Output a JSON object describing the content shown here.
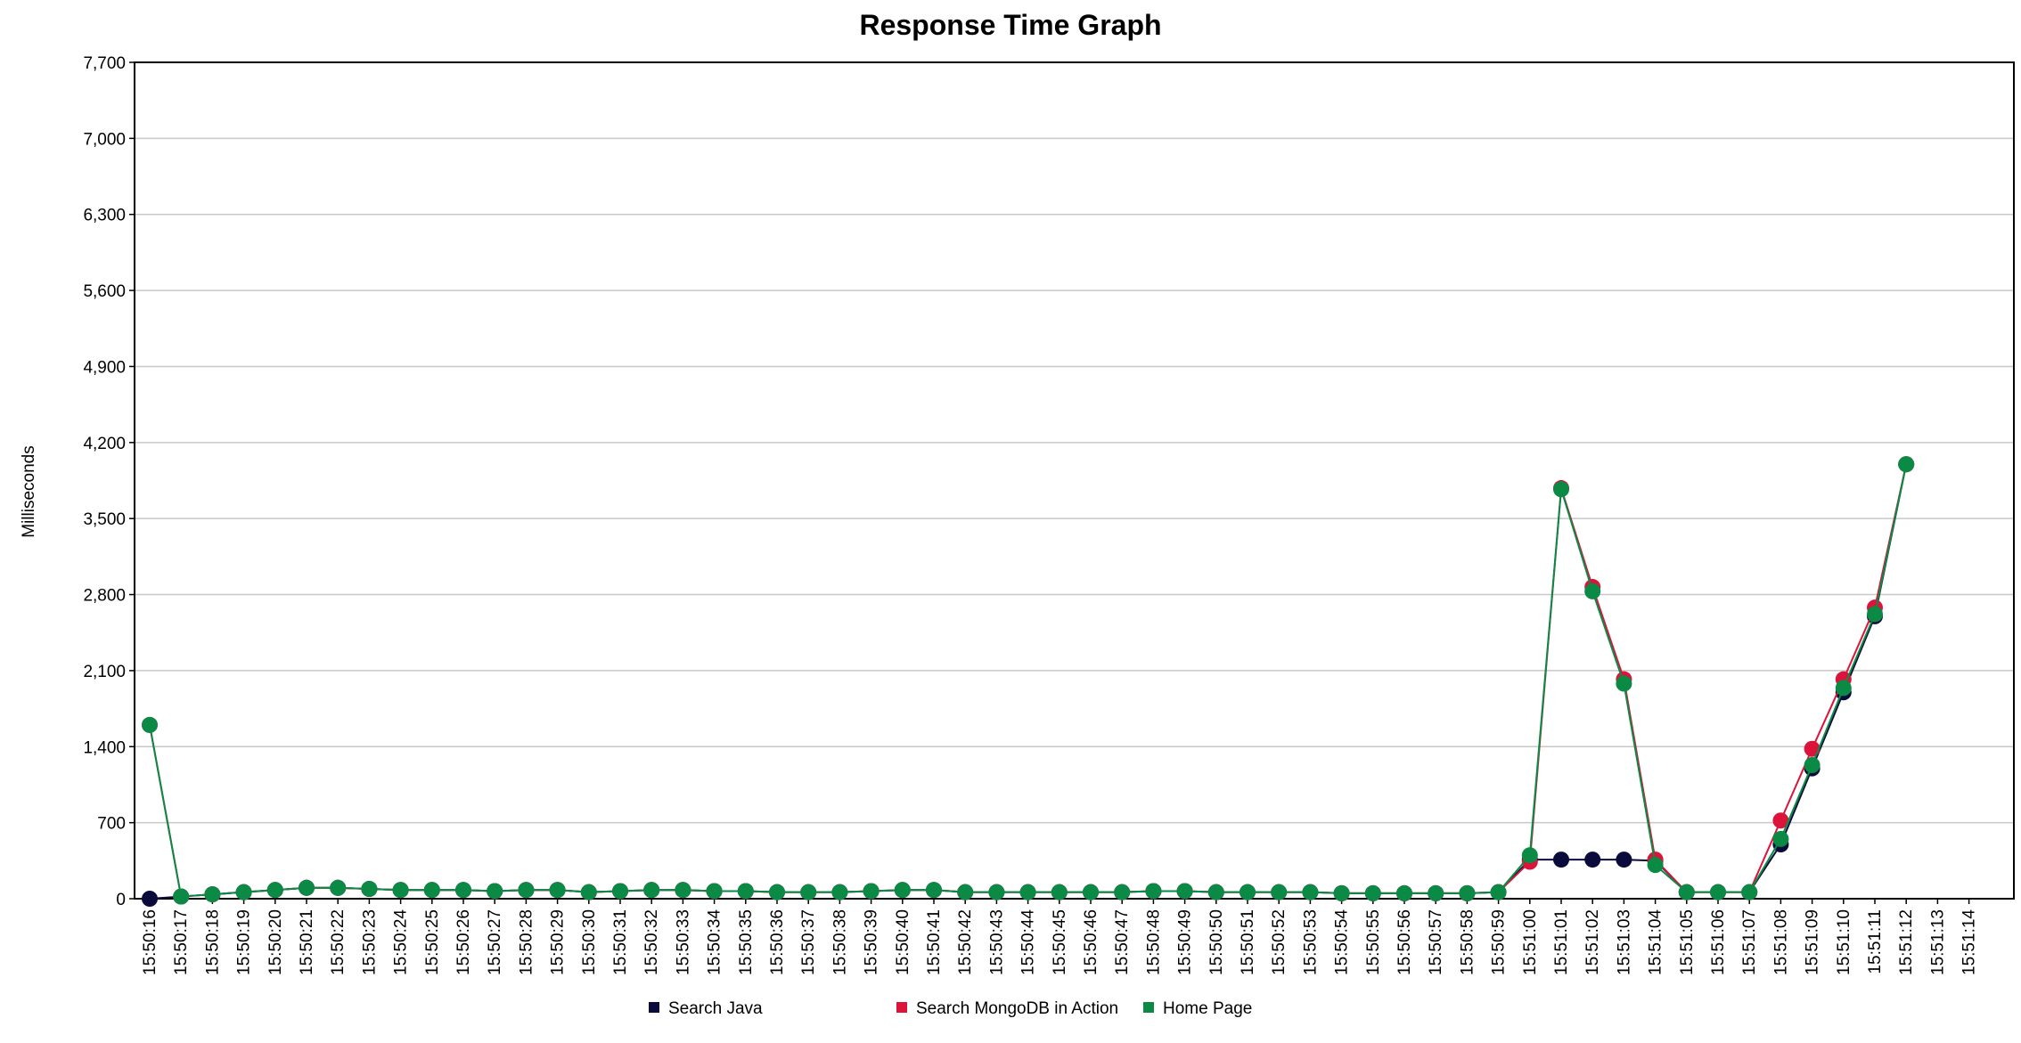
{
  "chart_data": {
    "type": "line",
    "title": "Response Time Graph",
    "xlabel": "",
    "ylabel": "Milliseconds",
    "ylim": [
      0,
      7700
    ],
    "yticks": [
      0,
      700,
      1400,
      2100,
      2800,
      3500,
      4200,
      4900,
      5600,
      6300,
      7000,
      7700
    ],
    "ytick_labels": [
      "0",
      "700",
      "1,400",
      "2,100",
      "2,800",
      "3,500",
      "4,200",
      "4,900",
      "5,600",
      "6,300",
      "7,000",
      "7,700"
    ],
    "x": [
      "15:50:16",
      "15:50:17",
      "15:50:18",
      "15:50:19",
      "15:50:20",
      "15:50:21",
      "15:50:22",
      "15:50:23",
      "15:50:24",
      "15:50:25",
      "15:50:26",
      "15:50:27",
      "15:50:28",
      "15:50:29",
      "15:50:30",
      "15:50:31",
      "15:50:32",
      "15:50:33",
      "15:50:34",
      "15:50:35",
      "15:50:36",
      "15:50:37",
      "15:50:38",
      "15:50:39",
      "15:50:40",
      "15:50:41",
      "15:50:42",
      "15:50:43",
      "15:50:44",
      "15:50:45",
      "15:50:46",
      "15:50:47",
      "15:50:48",
      "15:50:49",
      "15:50:50",
      "15:50:51",
      "15:50:52",
      "15:50:53",
      "15:50:54",
      "15:50:55",
      "15:50:56",
      "15:50:57",
      "15:50:58",
      "15:50:59",
      "15:51:00",
      "15:51:01",
      "15:51:02",
      "15:51:03",
      "15:51:04",
      "15:51:05",
      "15:51:06",
      "15:51:07",
      "15:51:08",
      "15:51:09",
      "15:51:10",
      "15:51:11",
      "15:51:12",
      "15:51:13",
      "15:51:14"
    ],
    "grid": true,
    "legend_position": "bottom",
    "series": [
      {
        "name": "Search Java",
        "color": "#0b0b3b",
        "values": [
          0,
          20,
          40,
          60,
          80,
          100,
          100,
          90,
          80,
          80,
          80,
          70,
          80,
          80,
          60,
          70,
          80,
          80,
          70,
          70,
          60,
          60,
          60,
          70,
          80,
          80,
          60,
          60,
          60,
          60,
          60,
          60,
          70,
          70,
          60,
          60,
          60,
          60,
          50,
          50,
          50,
          50,
          50,
          60,
          360,
          360,
          360,
          360,
          350,
          60,
          60,
          60,
          500,
          1200,
          1900,
          2600,
          4000,
          null,
          null
        ]
      },
      {
        "name": "Search MongoDB in Action",
        "color": "#dc143c",
        "values": [
          1600,
          20,
          40,
          60,
          80,
          100,
          100,
          90,
          80,
          80,
          80,
          70,
          80,
          80,
          60,
          70,
          80,
          80,
          70,
          70,
          60,
          60,
          60,
          70,
          80,
          80,
          60,
          60,
          60,
          60,
          60,
          60,
          70,
          70,
          60,
          60,
          60,
          60,
          50,
          50,
          50,
          50,
          50,
          60,
          340,
          3780,
          2870,
          2020,
          360,
          60,
          60,
          60,
          720,
          1380,
          2020,
          2680,
          4000,
          null,
          null
        ]
      },
      {
        "name": "Home Page",
        "color": "#0a8a45",
        "values": [
          1600,
          20,
          40,
          60,
          80,
          100,
          100,
          90,
          80,
          80,
          80,
          70,
          80,
          80,
          60,
          70,
          80,
          80,
          70,
          70,
          60,
          60,
          60,
          70,
          80,
          80,
          60,
          60,
          60,
          60,
          60,
          60,
          70,
          70,
          60,
          60,
          60,
          60,
          50,
          50,
          50,
          50,
          50,
          60,
          400,
          3770,
          2830,
          1980,
          310,
          60,
          60,
          60,
          550,
          1230,
          1940,
          2620,
          4000,
          null,
          null
        ]
      }
    ]
  }
}
